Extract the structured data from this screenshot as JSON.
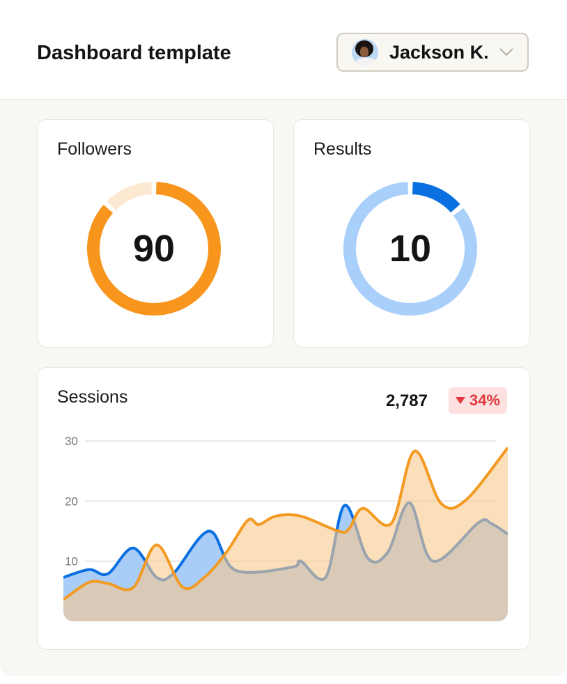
{
  "header": {
    "title": "Dashboard template",
    "user": {
      "name": "Jackson K.",
      "avatar_icon": "user-avatar",
      "dropdown_icon": "chevron-down-icon"
    }
  },
  "followers": {
    "label": "Followers",
    "value": "90",
    "arc_fraction": 0.87,
    "color": "#f7951d",
    "track_color": "#fde8d2"
  },
  "results": {
    "label": "Results",
    "value": "10",
    "arc_fraction": 0.14,
    "color": "#0a6fe0",
    "track_color": "#a9cffb"
  },
  "sessions": {
    "label": "Sessions",
    "total": "2,787",
    "change": "34%",
    "change_direction": "down",
    "change_color": "#e0393e"
  },
  "chart_data": {
    "type": "area",
    "yticks": [
      "10",
      "20",
      "30"
    ],
    "ylim": [
      0,
      30
    ],
    "grid": true,
    "series": [
      {
        "color": "#0a6fe0",
        "fill": "#a8cdf8",
        "points": [
          [
            0,
            7.3
          ],
          [
            5.8,
            8.6
          ],
          [
            10,
            7.9
          ],
          [
            15.7,
            12.2
          ],
          [
            21,
            7.3
          ],
          [
            24.8,
            8
          ],
          [
            32.8,
            15
          ],
          [
            38.7,
            8.5
          ],
          [
            51.4,
            9
          ],
          [
            53.4,
            10
          ],
          [
            59,
            7.3
          ],
          [
            63.3,
            19.3
          ],
          [
            68.5,
            10.5
          ],
          [
            73,
            11.5
          ],
          [
            77.9,
            19.7
          ],
          [
            83.2,
            10
          ],
          [
            93.4,
            16.4
          ],
          [
            96.2,
            16.3
          ],
          [
            100,
            14.5
          ]
        ]
      },
      {
        "color": "#f39a22",
        "fill": "#f8c88c",
        "points": [
          [
            0,
            3.6
          ],
          [
            5.8,
            6.5
          ],
          [
            10,
            6.3
          ],
          [
            15.7,
            5.6
          ],
          [
            21,
            12.7
          ],
          [
            26.8,
            5.7
          ],
          [
            31.7,
            7.3
          ],
          [
            36.7,
            11.5
          ],
          [
            41.5,
            16.8
          ],
          [
            44,
            16.1
          ],
          [
            47.8,
            17.5
          ],
          [
            53.4,
            17.5
          ],
          [
            61.9,
            15
          ],
          [
            64.3,
            15.4
          ],
          [
            67.4,
            18.8
          ],
          [
            73.8,
            16.3
          ],
          [
            79,
            28.3
          ],
          [
            85,
            19.6
          ],
          [
            90.6,
            20.2
          ],
          [
            100,
            28.9
          ]
        ]
      }
    ]
  }
}
